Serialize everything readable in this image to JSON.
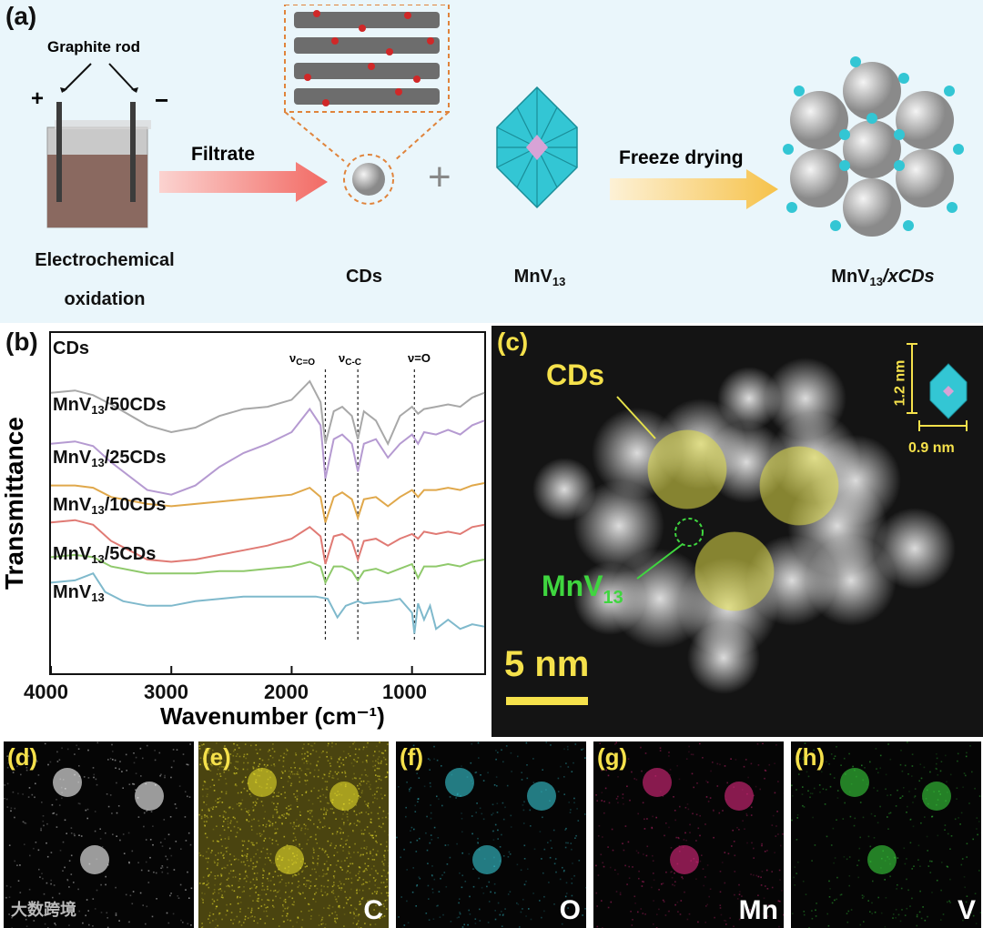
{
  "panel_a": {
    "label": "(a)",
    "graphite_rod": "Graphite rod",
    "plus": "+",
    "minus": "−",
    "electrochem_line1": "Electrochemical",
    "electrochem_line2": "oxidation",
    "filtrate": "Filtrate",
    "cds": "CDs",
    "mnv13": "MnV",
    "mnv13_sub": "13",
    "plus_sign": "+",
    "freeze": "Freeze drying",
    "composite": "MnV",
    "composite_sub": "13",
    "composite_tail": "/xCDs"
  },
  "panel_b": {
    "label": "(b)",
    "ylabel": "Transmittance",
    "xlabel": "Wavenumber (cm⁻¹)",
    "annotations": [
      "νC=O",
      "νC-C",
      "ν=O"
    ],
    "curve_labels": [
      "CDs",
      "MnV13/50CDs",
      "MnV13/25CDs",
      "MnV13/10CDs",
      "MnV13/5CDs",
      "MnV13"
    ]
  },
  "panel_c": {
    "label": "(c)",
    "cds": "CDs",
    "mnv13": "MnV",
    "mnv13_sub": "13",
    "dim1": "1.2 nm",
    "dim2": "0.9 nm",
    "scalebar": "5 nm"
  },
  "maps": [
    {
      "label": "(d)",
      "element": "",
      "color": "#ffffff"
    },
    {
      "label": "(e)",
      "element": "C",
      "color": "#e6dc2a"
    },
    {
      "label": "(f)",
      "element": "O",
      "color": "#37c9d6"
    },
    {
      "label": "(g)",
      "element": "Mn",
      "color": "#e0287e"
    },
    {
      "label": "(h)",
      "element": "V",
      "color": "#38d23c"
    }
  ],
  "watermark": "大数跨境",
  "chart_data": {
    "type": "line",
    "xlabel": "Wavenumber (cm⁻¹)",
    "ylabel": "Transmittance",
    "xlim": [
      4000,
      400
    ],
    "xticks": [
      4000,
      3000,
      2000,
      1000
    ],
    "vlines": [
      1720,
      1450,
      980
    ],
    "series": [
      {
        "name": "CDs",
        "color": "#a8a8a8",
        "x": [
          4000,
          3800,
          3650,
          3500,
          3200,
          3000,
          2800,
          2600,
          2400,
          2200,
          2000,
          1850,
          1760,
          1720,
          1650,
          1580,
          1500,
          1450,
          1400,
          1300,
          1200,
          1100,
          1000,
          950,
          900,
          800,
          700,
          600,
          500,
          400
        ],
        "y": [
          0.92,
          0.93,
          0.91,
          0.87,
          0.78,
          0.75,
          0.77,
          0.82,
          0.85,
          0.86,
          0.89,
          0.97,
          0.88,
          0.7,
          0.84,
          0.86,
          0.82,
          0.72,
          0.84,
          0.8,
          0.7,
          0.82,
          0.86,
          0.83,
          0.85,
          0.86,
          0.87,
          0.86,
          0.9,
          0.92
        ]
      },
      {
        "name": "MnV13/50CDs",
        "color": "#b59ad1",
        "x": [
          4000,
          3800,
          3650,
          3500,
          3200,
          3000,
          2800,
          2600,
          2400,
          2200,
          2000,
          1850,
          1760,
          1720,
          1650,
          1580,
          1500,
          1450,
          1400,
          1300,
          1200,
          1100,
          1000,
          950,
          900,
          800,
          700,
          600,
          500,
          400
        ],
        "y": [
          0.7,
          0.71,
          0.69,
          0.62,
          0.5,
          0.48,
          0.52,
          0.6,
          0.66,
          0.7,
          0.75,
          0.85,
          0.78,
          0.55,
          0.72,
          0.74,
          0.7,
          0.58,
          0.7,
          0.72,
          0.64,
          0.7,
          0.74,
          0.7,
          0.75,
          0.74,
          0.76,
          0.74,
          0.78,
          0.8
        ]
      },
      {
        "name": "MnV13/25CDs",
        "color": "#e0a84b",
        "x": [
          4000,
          3800,
          3650,
          3500,
          3200,
          3000,
          2800,
          2600,
          2400,
          2200,
          2000,
          1850,
          1760,
          1720,
          1650,
          1580,
          1500,
          1450,
          1400,
          1300,
          1200,
          1100,
          1000,
          950,
          900,
          800,
          700,
          600,
          500,
          400
        ],
        "y": [
          0.52,
          0.52,
          0.51,
          0.47,
          0.44,
          0.43,
          0.44,
          0.45,
          0.46,
          0.47,
          0.48,
          0.51,
          0.47,
          0.36,
          0.47,
          0.49,
          0.46,
          0.38,
          0.46,
          0.47,
          0.43,
          0.47,
          0.5,
          0.47,
          0.5,
          0.5,
          0.51,
          0.5,
          0.52,
          0.53
        ]
      },
      {
        "name": "MnV13/10CDs",
        "color": "#e07a74",
        "x": [
          4000,
          3800,
          3650,
          3500,
          3200,
          3000,
          2800,
          2600,
          2400,
          2200,
          2000,
          1850,
          1760,
          1720,
          1650,
          1580,
          1500,
          1450,
          1400,
          1300,
          1200,
          1100,
          1000,
          950,
          900,
          800,
          700,
          600,
          500,
          400
        ],
        "y": [
          0.36,
          0.37,
          0.35,
          0.28,
          0.2,
          0.19,
          0.2,
          0.22,
          0.24,
          0.26,
          0.29,
          0.34,
          0.3,
          0.18,
          0.3,
          0.31,
          0.28,
          0.2,
          0.28,
          0.29,
          0.26,
          0.29,
          0.31,
          0.29,
          0.32,
          0.31,
          0.32,
          0.31,
          0.34,
          0.35
        ]
      },
      {
        "name": "MnV13/5CDs",
        "color": "#8fc96b",
        "x": [
          4000,
          3800,
          3650,
          3500,
          3200,
          3000,
          2800,
          2600,
          2400,
          2200,
          2000,
          1850,
          1760,
          1720,
          1650,
          1580,
          1500,
          1450,
          1400,
          1300,
          1200,
          1100,
          1000,
          950,
          900,
          800,
          700,
          600,
          500,
          400
        ],
        "y": [
          0.21,
          0.22,
          0.21,
          0.17,
          0.14,
          0.14,
          0.14,
          0.15,
          0.15,
          0.16,
          0.17,
          0.19,
          0.17,
          0.1,
          0.17,
          0.17,
          0.15,
          0.11,
          0.15,
          0.16,
          0.14,
          0.16,
          0.18,
          0.12,
          0.17,
          0.17,
          0.18,
          0.17,
          0.19,
          0.2
        ]
      },
      {
        "name": "MnV13",
        "color": "#7fb9cc",
        "x": [
          4000,
          3800,
          3700,
          3650,
          3550,
          3400,
          3200,
          3000,
          2800,
          2600,
          2400,
          2200,
          2000,
          1800,
          1700,
          1620,
          1550,
          1450,
          1400,
          1200,
          1100,
          1000,
          980,
          950,
          900,
          850,
          800,
          700,
          600,
          500,
          400
        ],
        "y": [
          0.1,
          0.11,
          0.13,
          0.14,
          0.06,
          0.02,
          0.0,
          0.0,
          0.02,
          0.03,
          0.04,
          0.04,
          0.04,
          0.04,
          0.03,
          -0.05,
          0.0,
          0.02,
          0.01,
          0.02,
          0.03,
          -0.03,
          -0.12,
          0.01,
          -0.06,
          0.0,
          -0.1,
          -0.06,
          -0.1,
          -0.08,
          -0.09
        ]
      }
    ]
  }
}
